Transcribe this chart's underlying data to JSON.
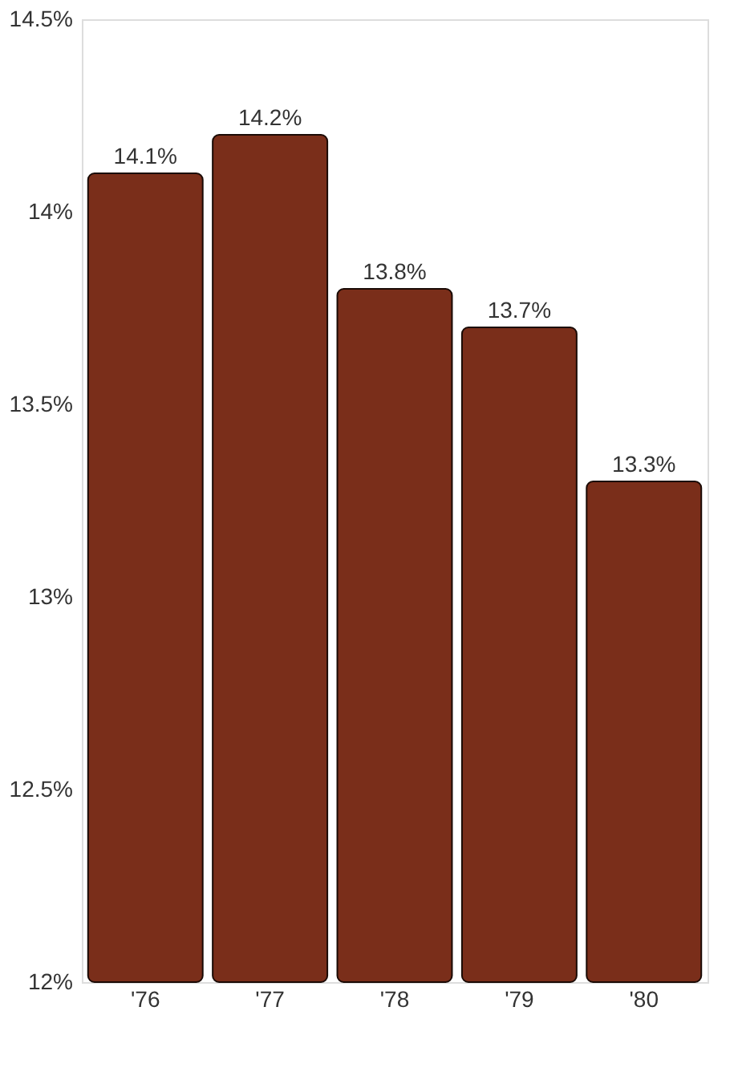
{
  "chart_data": {
    "type": "bar",
    "categories": [
      "'76",
      "'77",
      "'78",
      "'79",
      "'80"
    ],
    "values": [
      14.1,
      14.2,
      13.8,
      13.7,
      13.3
    ],
    "color": "#7a2e1a",
    "value_labels": [
      "14.1%",
      "14.2%",
      "13.8%",
      "13.7%",
      "13.3%"
    ],
    "ylim": [
      12,
      14.5
    ],
    "yticks": [
      {
        "value": 12,
        "label": "12%"
      },
      {
        "value": 12.5,
        "label": "12.5%"
      },
      {
        "value": 13,
        "label": "13%"
      },
      {
        "value": 13.5,
        "label": "13.5%"
      },
      {
        "value": 14,
        "label": "14%"
      },
      {
        "value": 14.5,
        "label": "14.5%"
      }
    ],
    "grid": false
  }
}
